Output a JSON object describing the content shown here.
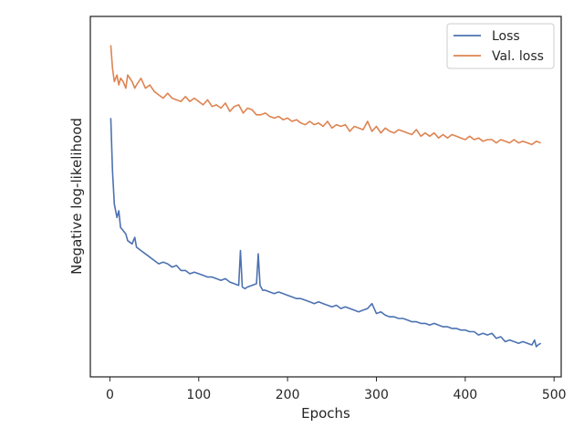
{
  "chart_data": {
    "type": "line",
    "xlabel": "Epochs",
    "ylabel": "Negative log-likelihood",
    "xlim": [
      -22,
      508
    ],
    "ylim": [
      0,
      100
    ],
    "xticks": [
      0,
      100,
      200,
      300,
      400,
      500
    ],
    "y_tick_labels_shown": false,
    "grid": false,
    "legend_position": "top-right",
    "series": [
      {
        "name": "Loss",
        "color": "#4c72b0",
        "x": [
          1,
          3,
          5,
          8,
          10,
          12,
          15,
          18,
          20,
          25,
          28,
          30,
          35,
          40,
          45,
          50,
          55,
          60,
          65,
          70,
          75,
          80,
          85,
          90,
          95,
          100,
          105,
          110,
          115,
          120,
          125,
          130,
          135,
          140,
          145,
          147,
          149,
          152,
          155,
          160,
          165,
          167,
          169,
          172,
          175,
          180,
          185,
          190,
          195,
          200,
          205,
          210,
          215,
          220,
          225,
          230,
          235,
          240,
          245,
          250,
          255,
          260,
          265,
          270,
          275,
          280,
          285,
          290,
          295,
          300,
          305,
          310,
          315,
          320,
          325,
          330,
          335,
          340,
          345,
          350,
          355,
          360,
          365,
          370,
          375,
          380,
          385,
          390,
          395,
          400,
          405,
          410,
          415,
          420,
          425,
          430,
          435,
          440,
          445,
          450,
          455,
          460,
          465,
          470,
          475,
          478,
          480,
          482,
          485
        ],
        "y": [
          74,
          58,
          48,
          44,
          46,
          41,
          40,
          39,
          37,
          36,
          38,
          35,
          34,
          33,
          32,
          31,
          30,
          30.5,
          30,
          29,
          29.5,
          28,
          28,
          27,
          27.5,
          27,
          26.5,
          26,
          26,
          25.5,
          25,
          25.5,
          24.5,
          24,
          23.5,
          34,
          23,
          22.5,
          23,
          23.5,
          24,
          33,
          23.5,
          22,
          22,
          21.5,
          21,
          21.5,
          21,
          20.5,
          20,
          19.5,
          19.5,
          19,
          18.5,
          18,
          18.5,
          18,
          17.5,
          17,
          17.5,
          16.5,
          17,
          16.5,
          16,
          15.5,
          16,
          16.5,
          18,
          15,
          15.5,
          14.5,
          14,
          14,
          13.5,
          13.5,
          13,
          12.5,
          12.5,
          12,
          12,
          11.5,
          12,
          11.5,
          11,
          11,
          10.5,
          10.5,
          10,
          10,
          9.5,
          9.5,
          8.5,
          9,
          8.5,
          9,
          7.5,
          8,
          6.5,
          7,
          6.5,
          6,
          6.5,
          6,
          5.5,
          7,
          5,
          5.5,
          6
        ]
      },
      {
        "name": "Val. loss",
        "color": "#dd8452",
        "x": [
          1,
          3,
          5,
          8,
          10,
          12,
          15,
          18,
          20,
          25,
          28,
          30,
          35,
          40,
          45,
          50,
          55,
          60,
          65,
          70,
          75,
          80,
          85,
          90,
          95,
          100,
          105,
          110,
          115,
          120,
          125,
          130,
          135,
          140,
          145,
          150,
          155,
          160,
          165,
          170,
          175,
          180,
          185,
          190,
          195,
          200,
          205,
          210,
          215,
          220,
          225,
          230,
          235,
          240,
          245,
          250,
          255,
          260,
          265,
          270,
          275,
          280,
          285,
          290,
          295,
          300,
          305,
          310,
          315,
          320,
          325,
          330,
          335,
          340,
          345,
          350,
          355,
          360,
          365,
          370,
          375,
          380,
          385,
          390,
          395,
          400,
          405,
          410,
          415,
          420,
          425,
          430,
          435,
          440,
          445,
          450,
          455,
          460,
          465,
          470,
          475,
          480,
          485
        ],
        "y": [
          96,
          89,
          85,
          87,
          84,
          86,
          85,
          83,
          87,
          85,
          83,
          84,
          86,
          83,
          84,
          82,
          81,
          80,
          81.5,
          80,
          79.5,
          79,
          80.5,
          79,
          80,
          79,
          78,
          79.5,
          77.5,
          78,
          77,
          78.5,
          76,
          77.5,
          78,
          75.5,
          77,
          76.5,
          75,
          75,
          75.5,
          74.5,
          74,
          74.5,
          73.5,
          74,
          73,
          73.5,
          72.5,
          72,
          73,
          72,
          72.5,
          71.5,
          73,
          71,
          72,
          71.5,
          72,
          70,
          71.5,
          71,
          70.5,
          73,
          70,
          71.5,
          69.5,
          71,
          70,
          69.5,
          70.5,
          70,
          69.5,
          69,
          70.5,
          68.5,
          69.5,
          68.5,
          69.5,
          68,
          69,
          68,
          69,
          68.5,
          68,
          67.5,
          68.5,
          67.5,
          68,
          67,
          67.5,
          67.5,
          66.5,
          67.5,
          67,
          66.5,
          67.5,
          66.5,
          67,
          66.5,
          66,
          67,
          66.5
        ]
      }
    ]
  }
}
